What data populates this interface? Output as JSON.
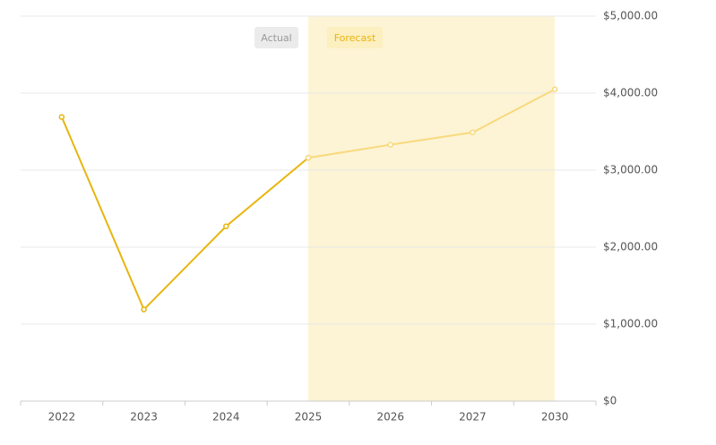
{
  "chart_data": {
    "type": "line",
    "categories": [
      "2022",
      "2023",
      "2024",
      "2025",
      "2026",
      "2027",
      "2030"
    ],
    "series": [
      {
        "name": "Actual",
        "color": "#e8b50f",
        "values": [
          3690,
          1190,
          2270,
          3160,
          null,
          null,
          null
        ]
      },
      {
        "name": "Forecast",
        "color": "#f8d97e",
        "values": [
          null,
          null,
          null,
          3160,
          3330,
          3490,
          4050
        ]
      }
    ],
    "ylim": [
      0,
      5000
    ],
    "yticks": [
      {
        "value": 0,
        "label": "$0"
      },
      {
        "value": 1000,
        "label": "$1,000.00"
      },
      {
        "value": 2000,
        "label": "$2,000.00"
      },
      {
        "value": 3000,
        "label": "$3,000.00"
      },
      {
        "value": 4000,
        "label": "$4,000.00"
      },
      {
        "value": 5000,
        "label": "$5,000.00"
      }
    ],
    "grid": true
  }
}
